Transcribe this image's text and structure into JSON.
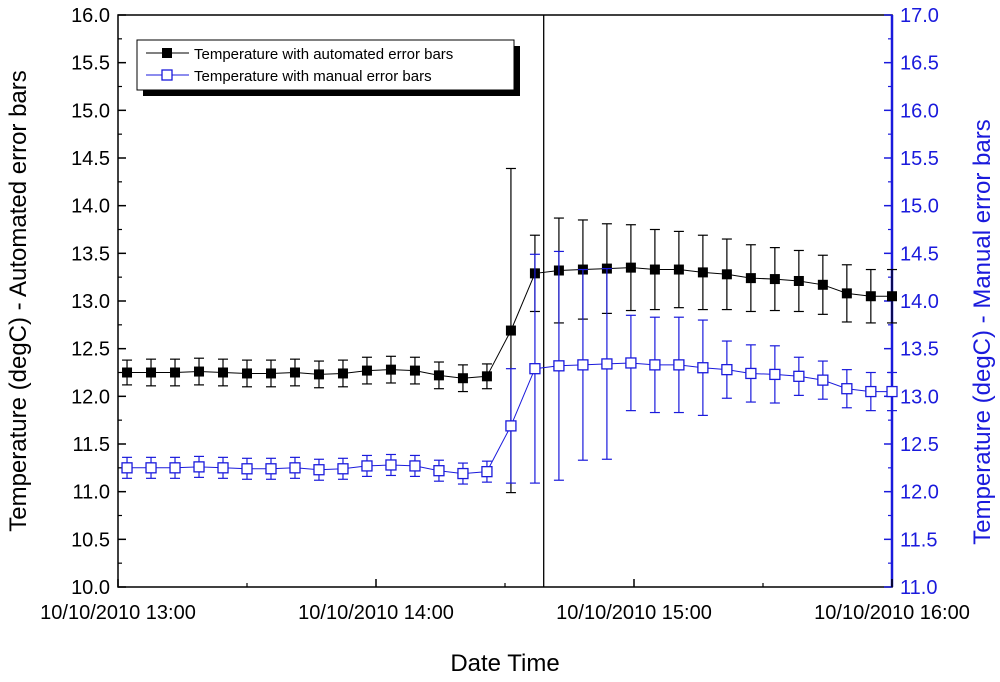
{
  "chart_data": {
    "type": "line",
    "xlabel": "Date Time",
    "ylabel_left": "Temperature (degC) - Automated error bars",
    "ylabel_right": "Temperature (degC) - Manual error bars",
    "xlim": [
      0,
      3
    ],
    "x_units": "hours after 10/10/2010 13:00",
    "ylim_left": [
      10.0,
      16.0
    ],
    "ylim_right": [
      11.0,
      17.0
    ],
    "x_ticks": [
      0,
      1,
      2,
      3
    ],
    "x_tick_labels": [
      "10/10/2010 13:00",
      "10/10/2010 14:00",
      "10/10/2010 15:00",
      "10/10/2010 16:00"
    ],
    "y_ticks_left": [
      "10.0",
      "10.5",
      "11.0",
      "11.5",
      "12.0",
      "12.5",
      "13.0",
      "13.5",
      "14.0",
      "14.5",
      "15.0",
      "15.5",
      "16.0"
    ],
    "y_ticks_right": [
      "11.0",
      "11.5",
      "12.0",
      "12.5",
      "13.0",
      "13.5",
      "14.0",
      "14.5",
      "15.0",
      "15.5",
      "16.0",
      "16.5",
      "17.0"
    ],
    "vline_x": 1.65,
    "legend_position": "top-left",
    "x": [
      0.035,
      0.128,
      0.221,
      0.314,
      0.407,
      0.5,
      0.593,
      0.686,
      0.779,
      0.872,
      0.965,
      1.058,
      1.151,
      1.244,
      1.337,
      1.43,
      1.523,
      1.616,
      1.709,
      1.802,
      1.895,
      1.988,
      2.081,
      2.174,
      2.267,
      2.36,
      2.453,
      2.546,
      2.639,
      2.732,
      2.825,
      2.918,
      3.0
    ],
    "series": [
      {
        "name": "Temperature with automated error bars",
        "color": "#000000",
        "marker": "filled-square",
        "axis": "left",
        "values": [
          12.25,
          12.25,
          12.25,
          12.26,
          12.25,
          12.24,
          12.24,
          12.25,
          12.23,
          12.24,
          12.27,
          12.28,
          12.27,
          12.22,
          12.19,
          12.21,
          12.69,
          13.29,
          13.32,
          13.33,
          13.34,
          13.35,
          13.33,
          13.33,
          13.3,
          13.28,
          13.24,
          13.23,
          13.21,
          13.17,
          13.08,
          13.05,
          13.05
        ],
        "err": [
          0.13,
          0.14,
          0.14,
          0.14,
          0.14,
          0.14,
          0.14,
          0.14,
          0.14,
          0.14,
          0.14,
          0.14,
          0.14,
          0.14,
          0.14,
          0.13,
          1.7,
          0.4,
          0.55,
          0.52,
          0.47,
          0.45,
          0.42,
          0.4,
          0.39,
          0.37,
          0.35,
          0.33,
          0.32,
          0.31,
          0.3,
          0.28,
          0.28
        ]
      },
      {
        "name": "Temperature with manual error bars",
        "color": "#1a1adc",
        "marker": "open-square",
        "axis": "right",
        "values": [
          12.25,
          12.25,
          12.25,
          12.26,
          12.25,
          12.24,
          12.24,
          12.25,
          12.23,
          12.24,
          12.27,
          12.28,
          12.27,
          12.22,
          12.19,
          12.21,
          12.69,
          13.29,
          13.32,
          13.33,
          13.34,
          13.35,
          13.33,
          13.33,
          13.3,
          13.28,
          13.24,
          13.23,
          13.21,
          13.17,
          13.08,
          13.05,
          13.05
        ],
        "err": [
          0.11,
          0.11,
          0.11,
          0.11,
          0.11,
          0.11,
          0.11,
          0.11,
          0.11,
          0.11,
          0.11,
          0.11,
          0.11,
          0.11,
          0.11,
          0.11,
          0.6,
          1.2,
          1.2,
          1.0,
          1.0,
          0.5,
          0.5,
          0.5,
          0.5,
          0.3,
          0.3,
          0.3,
          0.2,
          0.2,
          0.2,
          0.2,
          0.2
        ]
      }
    ]
  }
}
